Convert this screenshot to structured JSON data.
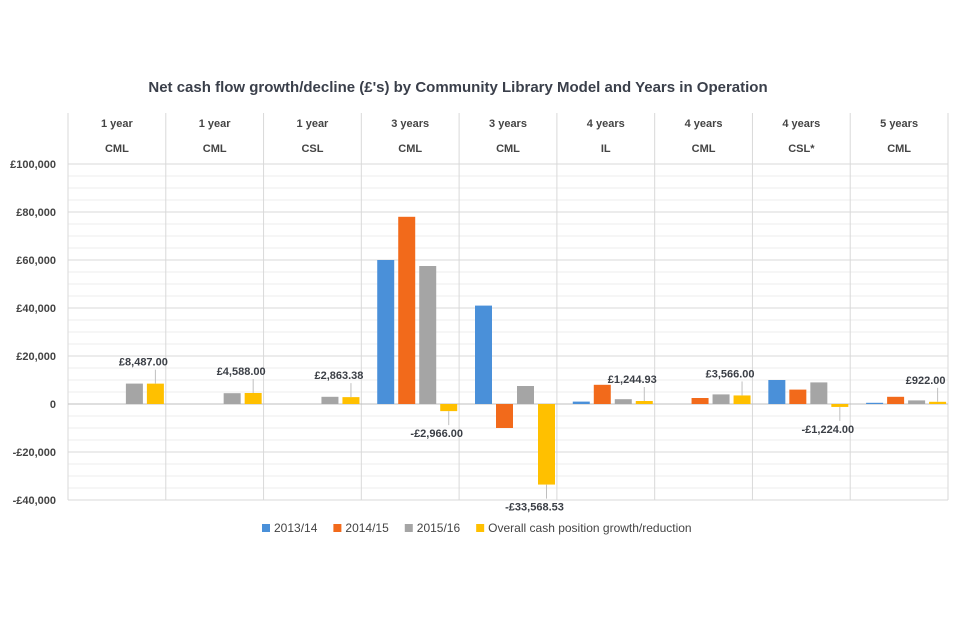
{
  "chart_data": {
    "type": "bar",
    "title": "Net cash flow growth/decline (£'s) by Community Library Model and Years in Operation",
    "xlabel": "",
    "ylabel": "",
    "ylim": [
      -40000,
      100000
    ],
    "yticks": [
      100000,
      80000,
      60000,
      40000,
      20000,
      0,
      -20000,
      -40000
    ],
    "ytick_labels": [
      "£100,000",
      "£80,000",
      "£60,000",
      "£40,000",
      "£20,000",
      "0",
      "-£20,000",
      "-£40,000"
    ],
    "categories": [
      {
        "years": "1 year",
        "model": "CML"
      },
      {
        "years": "1 year",
        "model": "CML"
      },
      {
        "years": "1 year",
        "model": "CSL"
      },
      {
        "years": "3 years",
        "model": "CML"
      },
      {
        "years": "3 years",
        "model": "CML"
      },
      {
        "years": "4 years",
        "model": "IL"
      },
      {
        "years": "4 years",
        "model": "CML"
      },
      {
        "years": "4 years",
        "model": "CSL*"
      },
      {
        "years": "5 years",
        "model": "CML"
      }
    ],
    "series": [
      {
        "name": "2013/14",
        "color": "#4a90d9",
        "values": [
          0,
          0,
          0,
          60000,
          41000,
          1000,
          0,
          10000,
          500
        ]
      },
      {
        "name": "2014/15",
        "color": "#f26a1b",
        "values": [
          0,
          0,
          0,
          78000,
          -10000,
          8000,
          2500,
          6000,
          3000
        ]
      },
      {
        "name": "2015/16",
        "color": "#a5a5a5",
        "values": [
          8500,
          4500,
          3000,
          57500,
          7500,
          2000,
          4000,
          9000,
          1500
        ]
      },
      {
        "name": "Overall cash position growth/reduction",
        "color": "#ffc000",
        "values": [
          8487,
          4588,
          2863.38,
          -2966,
          -33568.53,
          1244.93,
          3566,
          -1224,
          922
        ]
      }
    ],
    "data_labels": [
      "£8,487.00",
      "£4,588.00",
      "£2,863.38",
      "-£2,966.00",
      "-£33,568.53",
      "£1,244.93",
      "£3,566.00",
      "-£1,224.00",
      "£922.00"
    ],
    "grid": true,
    "legend_position": "bottom"
  }
}
